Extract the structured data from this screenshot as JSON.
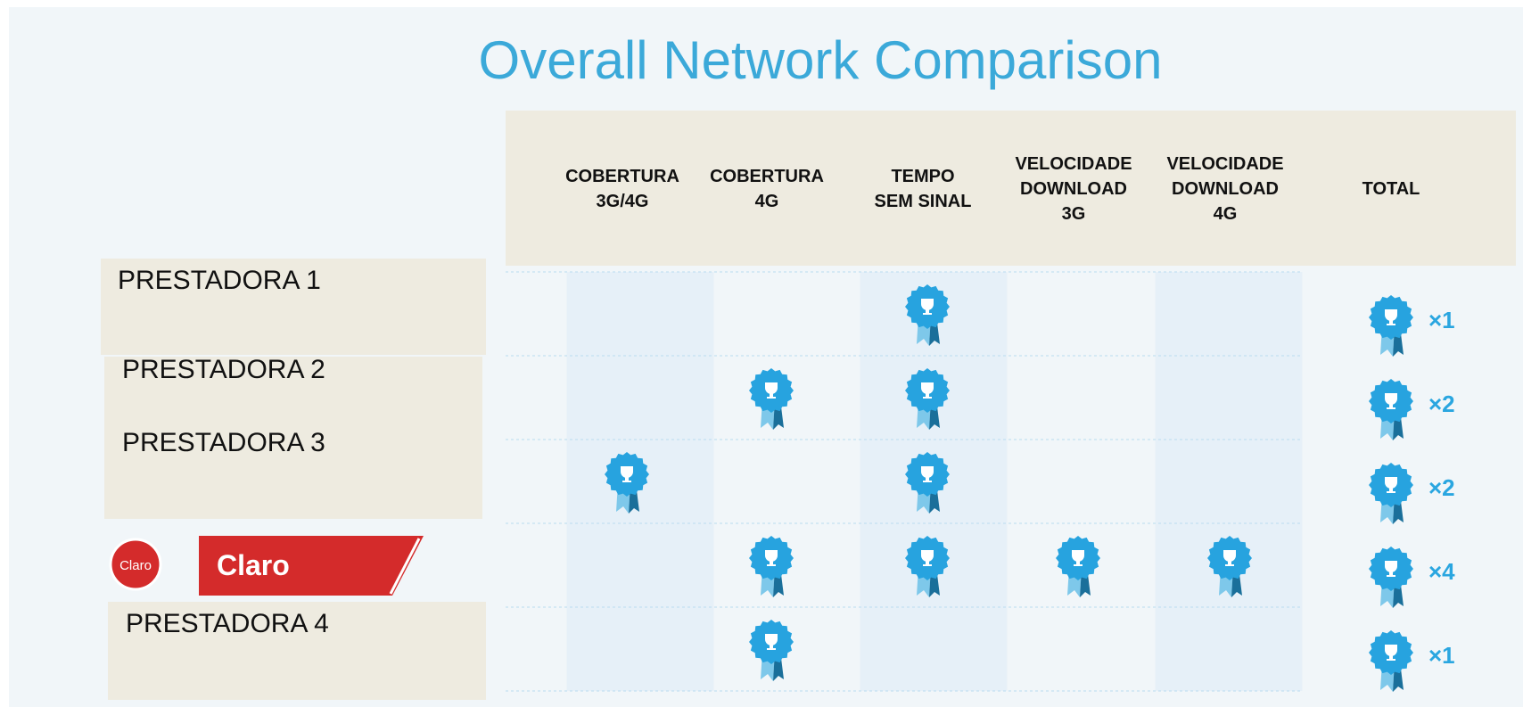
{
  "title": "Overall Network Comparison",
  "columns": [
    "COBERTURA\n3G/4G",
    "COBERTURA\n4G",
    "TEMPO\nSEM SINAL",
    "VELOCIDADE\nDOWNLOAD\n3G",
    "VELOCIDADE\nDOWNLOAD\n4G"
  ],
  "total_header": "TOTAL",
  "rows": [
    {
      "name": "PRESTADORA 1",
      "awards": [
        false,
        false,
        true,
        false,
        false
      ],
      "total": "×1"
    },
    {
      "name": "PRESTADORA 2",
      "awards": [
        false,
        true,
        true,
        false,
        false
      ],
      "total": "×2"
    },
    {
      "name": "PRESTADORA 3",
      "awards": [
        true,
        false,
        true,
        false,
        false
      ],
      "total": "×2"
    },
    {
      "name": "Claro",
      "awards": [
        false,
        true,
        true,
        true,
        true
      ],
      "total": "×4",
      "logo": "Claro"
    },
    {
      "name": "PRESTADORA 4",
      "awards": [
        false,
        true,
        false,
        false,
        false
      ],
      "total": "×1"
    }
  ]
}
